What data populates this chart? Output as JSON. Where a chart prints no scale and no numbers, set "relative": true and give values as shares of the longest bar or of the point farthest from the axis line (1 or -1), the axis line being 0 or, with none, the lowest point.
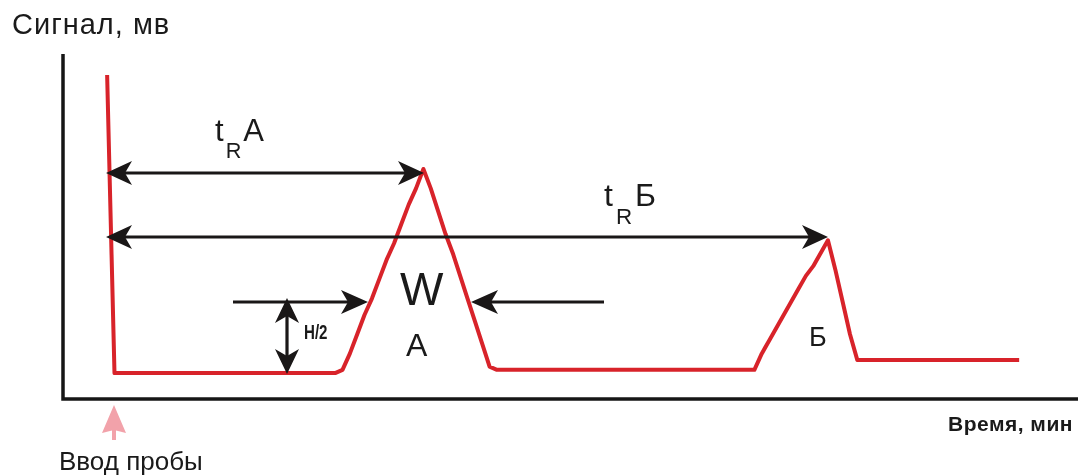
{
  "chart_data": {
    "type": "line",
    "relative": true,
    "ylabel": "Сигнал, мв",
    "xlabel": "Время, мин",
    "color": "#d8232a",
    "marker": "none",
    "line_style": "solid",
    "categories": [
      null,
      null,
      null,
      null,
      null,
      null,
      null,
      null,
      null,
      null,
      null,
      null,
      null,
      null,
      null,
      null,
      null,
      null,
      null,
      null,
      null,
      null,
      null,
      null,
      null,
      null,
      null,
      null,
      null,
      null,
      null,
      null,
      null,
      null,
      null,
      null,
      null,
      null,
      null,
      null,
      null,
      null,
      null,
      null,
      null,
      null,
      null,
      null,
      null,
      null,
      null,
      null,
      null,
      null,
      null,
      null,
      null,
      null,
      null,
      null,
      null,
      null,
      null,
      null,
      null,
      null,
      null,
      null,
      null,
      null,
      null,
      null,
      null,
      null,
      null,
      null,
      null,
      null,
      null,
      null,
      null,
      null,
      null,
      null,
      null,
      null,
      null,
      null,
      null,
      null,
      null,
      null,
      null,
      null,
      null,
      null,
      null,
      null,
      null,
      null,
      null,
      null,
      null,
      null,
      null,
      null,
      null,
      null,
      null,
      null,
      null,
      null,
      null,
      null,
      null,
      null,
      null,
      null,
      null,
      null,
      null,
      null,
      null,
      null,
      null,
      null,
      null,
      null,
      null,
      null,
      null,
      null,
      null,
      null,
      null,
      null,
      null,
      null,
      null
    ],
    "values": [
      null,
      null,
      null,
      null,
      null,
      null,
      1,
      0.08,
      0.08,
      0.08,
      0.08,
      0.08,
      0.08,
      0.08,
      0.08,
      0.08,
      0.08,
      0.08,
      0.08,
      0.08,
      0.08,
      0.08,
      0.08,
      0.08,
      0.08,
      0.08,
      0.08,
      0.08,
      0.08,
      0.08,
      0.08,
      0.08,
      0.08,
      0.08,
      0.08,
      0.08,
      0.08,
      0.08,
      0.09,
      0.14,
      0.2,
      0.26,
      0.31,
      0.37,
      0.43,
      0.48,
      0.54,
      0.6,
      0.65,
      0.71,
      0.65,
      0.58,
      0.51,
      0.45,
      0.38,
      0.31,
      0.24,
      0.17,
      0.1,
      0.09,
      0.09,
      0.09,
      0.09,
      0.09,
      0.09,
      0.09,
      0.09,
      0.09,
      0.09,
      0.09,
      0.09,
      0.09,
      0.09,
      0.09,
      0.09,
      0.09,
      0.09,
      0.09,
      0.09,
      0.09,
      0.09,
      0.09,
      0.09,
      0.09,
      0.09,
      0.09,
      0.09,
      0.09,
      0.09,
      0.09,
      0.09,
      0.09,
      0.09,
      0.09,
      0.09,
      0.14,
      0.18,
      0.22,
      0.26,
      0.3,
      0.34,
      0.38,
      0.41,
      0.45,
      0.49,
      0.4,
      0.3,
      0.2,
      0.12,
      0.12,
      0.12,
      0.12,
      0.12,
      0.12,
      0.12,
      0.12,
      0.12,
      0.12,
      0.12,
      0.12,
      0.12,
      0.12,
      0.12,
      0.12,
      0.12,
      0.12,
      0.12,
      0.12,
      0.12,
      0.12,
      0.12,
      null,
      null,
      null,
      null,
      null,
      null,
      null,
      null
    ],
    "annotations": [
      "t$_{R}$А",
      "t$_{R}$Б",
      "W",
      "H/2",
      "А",
      "Б",
      "Ввод пробы"
    ]
  }
}
